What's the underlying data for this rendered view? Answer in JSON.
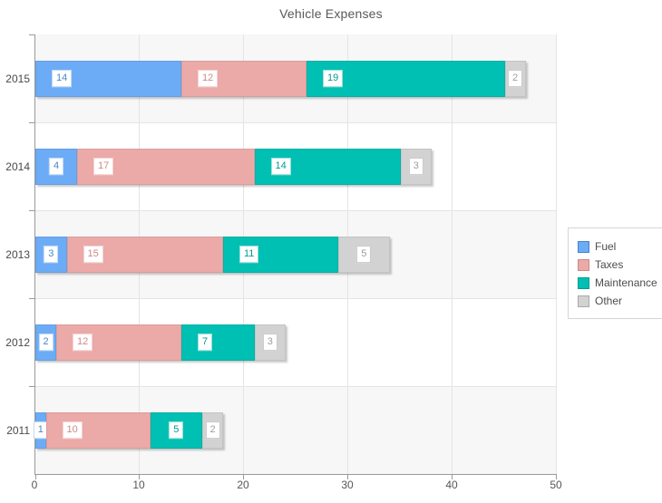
{
  "chart_data": {
    "type": "bar",
    "orientation": "horizontal",
    "stacked": true,
    "title": "Vehicle Expenses",
    "categories": [
      "2015",
      "2014",
      "2013",
      "2012",
      "2011"
    ],
    "series": [
      {
        "name": "Fuel",
        "color": "#6cacf6",
        "swatch_border": "#4a82c4",
        "label_color": "#4a86c8",
        "label_border": "#c3daf5",
        "values": [
          14,
          4,
          3,
          2,
          1
        ]
      },
      {
        "name": "Taxes",
        "color": "#eba9a7",
        "swatch_border": "#ca8a88",
        "label_color": "#cd8a87",
        "label_border": "#f4d3d2",
        "values": [
          12,
          17,
          15,
          12,
          10
        ]
      },
      {
        "name": "Maintenance",
        "color": "#00bfb3",
        "swatch_border": "#009b91",
        "label_color": "#009b91",
        "label_border": "#9cdfd9",
        "values": [
          19,
          14,
          11,
          7,
          5
        ]
      },
      {
        "name": "Other",
        "color": "#d2d2d2",
        "swatch_border": "#a9a9a9",
        "label_color": "#9e9e9e",
        "label_border": "#c9c9c9",
        "values": [
          2,
          3,
          5,
          3,
          2
        ]
      }
    ],
    "totals": [
      47,
      38,
      34,
      24,
      18
    ],
    "x_ticks": [
      "0",
      "10",
      "20",
      "30",
      "40",
      "50"
    ],
    "xlim": [
      0,
      50
    ],
    "grid": true,
    "legend_position": "right",
    "band_colors": [
      "#f7f7f7",
      "#ffffff"
    ],
    "gridline_color": "#e4e4e4",
    "axis_color": "#9a9a9a"
  }
}
